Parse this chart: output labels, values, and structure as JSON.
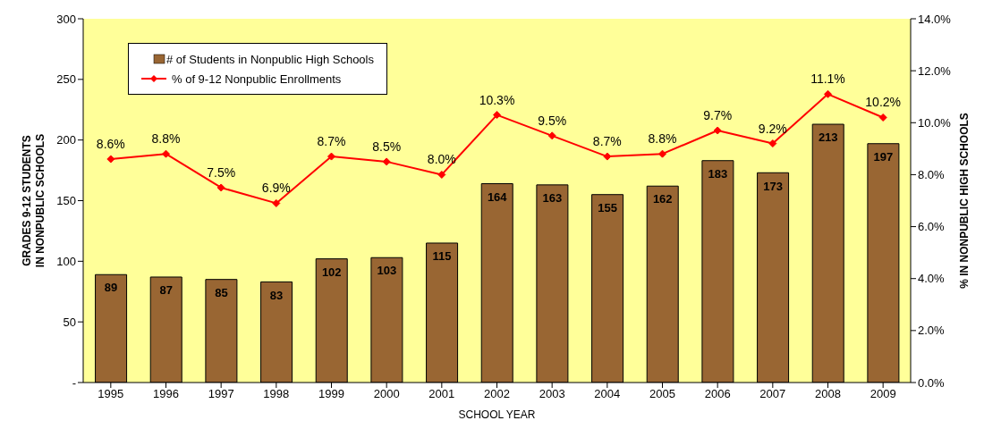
{
  "chart_data": {
    "type": "bar",
    "categories": [
      "1995",
      "1996",
      "1997",
      "1998",
      "1999",
      "2000",
      "2001",
      "2002",
      "2003",
      "2004",
      "2005",
      "2006",
      "2007",
      "2008",
      "2009"
    ],
    "xlabel": "SCHOOL YEAR",
    "ylabel": "GRADES 9-12 STUDENTS IN NONPUBLIC SCHOOLS",
    "y2label": "% IN NONPUBLIC HIGH SCHOOLS",
    "ylim": [
      0,
      300
    ],
    "yticks": [
      {
        "value": 0,
        "label": "-"
      },
      50,
      100,
      150,
      200,
      250,
      300
    ],
    "y2lim": [
      0,
      14
    ],
    "y2ticks": [
      {
        "value": 0,
        "label": "0.0%"
      },
      {
        "value": 2,
        "label": "2.0%"
      },
      {
        "value": 4,
        "label": "4.0%"
      },
      {
        "value": 6,
        "label": "6.0%"
      },
      {
        "value": 8,
        "label": "8.0%"
      },
      {
        "value": 10,
        "label": "10.0%"
      },
      {
        "value": 12,
        "label": "12.0%"
      },
      {
        "value": 14,
        "label": "14.0%"
      }
    ],
    "legend": "top left",
    "marker": "diamond",
    "line_style": "solid",
    "series": [
      {
        "name": "# of Students in Nonpublic High Schools",
        "color": "#996633",
        "values": [
          89,
          87,
          85,
          83,
          102,
          103,
          115,
          164,
          163,
          155,
          162,
          183,
          173,
          213,
          197
        ],
        "value_labels": [
          "89",
          "87",
          "85",
          "83",
          "102",
          "103",
          "115",
          "164",
          "163",
          "155",
          "162",
          "183",
          "173",
          "213",
          "197"
        ]
      },
      {
        "name": "% of 9-12 Nonpublic Enrollments",
        "type": "line",
        "axis": "y2",
        "color": "#ff0000",
        "values": [
          8.6,
          8.8,
          7.5,
          6.9,
          8.7,
          8.5,
          8.0,
          10.3,
          9.5,
          8.7,
          8.8,
          9.7,
          9.2,
          11.1,
          10.2
        ],
        "value_labels": [
          "8.6%",
          "8.8%",
          "7.5%",
          "6.9%",
          "8.7%",
          "8.5%",
          "8.0%",
          "10.3%",
          "9.5%",
          "8.7%",
          "8.8%",
          "9.7%",
          "9.2%",
          "11.1%",
          "10.2%"
        ]
      }
    ]
  }
}
